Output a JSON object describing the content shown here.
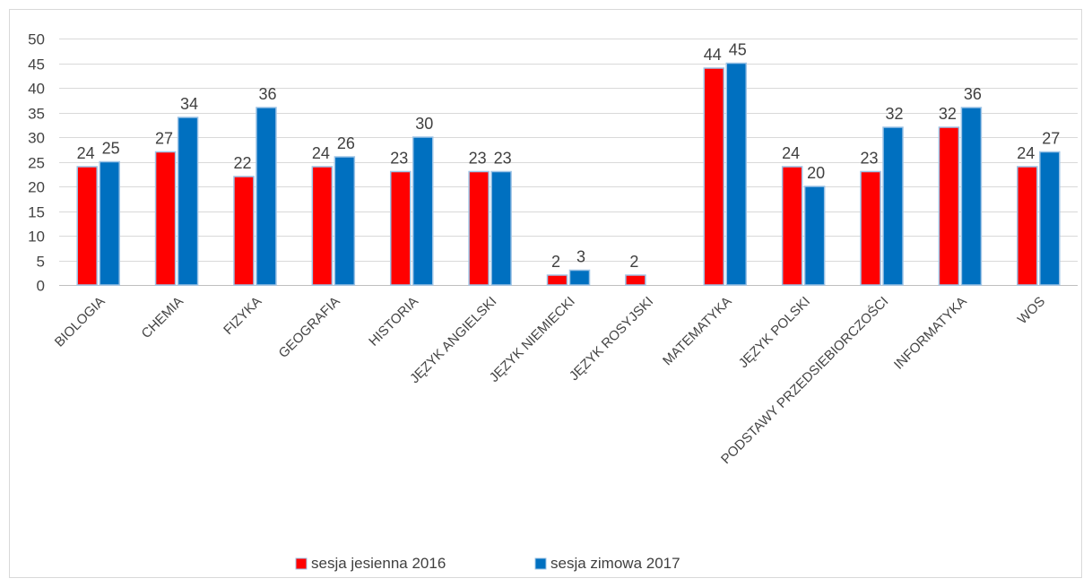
{
  "chart_data": {
    "type": "bar",
    "title": "",
    "xlabel": "",
    "ylabel": "",
    "ylim": [
      0,
      50
    ],
    "yticks": [
      0,
      5,
      10,
      15,
      20,
      25,
      30,
      35,
      40,
      45,
      50
    ],
    "grid": true,
    "legend_position": "bottom",
    "categories": [
      "BIOLOGIA",
      "CHEMIA",
      "FIZYKA",
      "GEOGRAFIA",
      "HISTORIA",
      "JĘZYK ANGIELSKI",
      "JĘZYK NIEMIECKI",
      "JĘZYK ROSYJSKI",
      "MATEMATYKA",
      "JĘZYK POLSKI",
      "PODSTAWY PRZEDSIEBIORCZOŚCI",
      "INFORMATYKA",
      "WOS"
    ],
    "series": [
      {
        "name": "sesja jesienna 2016",
        "color": "#ff0000",
        "values": [
          24,
          27,
          22,
          24,
          23,
          23,
          2,
          2,
          44,
          24,
          23,
          32,
          24
        ]
      },
      {
        "name": "sesja zimowa 2017",
        "color": "#0070c0",
        "values": [
          25,
          34,
          36,
          26,
          30,
          23,
          3,
          null,
          45,
          20,
          32,
          36,
          27
        ]
      }
    ]
  }
}
